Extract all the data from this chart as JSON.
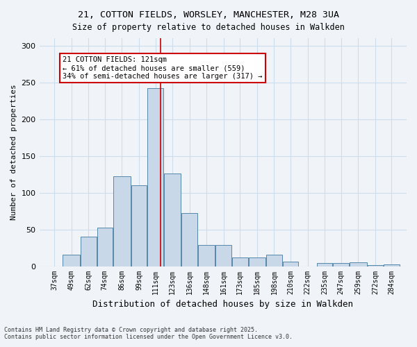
{
  "title_line1": "21, COTTON FIELDS, WORSLEY, MANCHESTER, M28 3UA",
  "title_line2": "Size of property relative to detached houses in Walkden",
  "xlabel": "Distribution of detached houses by size in Walkden",
  "ylabel": "Number of detached properties",
  "footer_line1": "Contains HM Land Registry data © Crown copyright and database right 2025.",
  "footer_line2": "Contains public sector information licensed under the Open Government Licence v3.0.",
  "annotation_line1": "21 COTTON FIELDS: 121sqm",
  "annotation_line2": "← 61% of detached houses are smaller (559)",
  "annotation_line3": "34% of semi-detached houses are larger (317) →",
  "property_size": 121,
  "bar_color": "#c8d8e8",
  "bar_edge_color": "#5588aa",
  "vline_color": "#cc0000",
  "annotation_box_color": "#cc0000",
  "grid_color": "#ccddee",
  "categories": [
    "37sqm",
    "49sqm",
    "62sqm",
    "74sqm",
    "86sqm",
    "99sqm",
    "111sqm",
    "123sqm",
    "136sqm",
    "148sqm",
    "161sqm",
    "173sqm",
    "185sqm",
    "198sqm",
    "210sqm",
    "222sqm",
    "235sqm",
    "247sqm",
    "259sqm",
    "272sqm",
    "284sqm"
  ],
  "bin_edges": [
    37,
    49,
    62,
    74,
    86,
    99,
    111,
    123,
    136,
    148,
    161,
    173,
    185,
    198,
    210,
    222,
    235,
    247,
    259,
    272,
    284,
    296
  ],
  "values": [
    0,
    16,
    40,
    52,
    122,
    110,
    242,
    126,
    72,
    29,
    29,
    12,
    12,
    16,
    6,
    0,
    4,
    4,
    5,
    1,
    2
  ],
  "ylim": [
    0,
    310
  ],
  "yticks": [
    0,
    50,
    100,
    150,
    200,
    250,
    300
  ]
}
